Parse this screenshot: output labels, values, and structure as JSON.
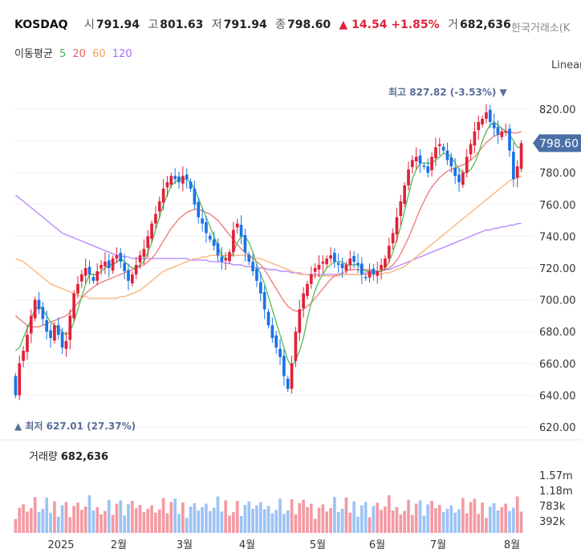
{
  "header": {
    "symbol": "KOSDAQ",
    "open_label": "시",
    "open": "791.94",
    "high_label": "고",
    "high": "801.63",
    "low_label": "저",
    "low": "791.94",
    "close_label": "종",
    "close": "798.60",
    "change": "▲ 14.54 +1.85%",
    "volume_label": "거",
    "volume": "682,636",
    "exchange": "한국거래소(K",
    "scale_mode": "Linear"
  },
  "moving_averages": {
    "label": "이동평균",
    "periods": [
      {
        "period": "5",
        "color": "#4caf50"
      },
      {
        "period": "20",
        "color": "#f06060"
      },
      {
        "period": "60",
        "color": "#f5a35c"
      },
      {
        "period": "120",
        "color": "#a66bff"
      }
    ]
  },
  "colors": {
    "up": "#e0223a",
    "down": "#1a73e8",
    "price_tag": "#4a6fa5",
    "vol_up": "#f49aa3",
    "vol_down": "#9cc3f5"
  },
  "chart_data": {
    "type": "candlestick",
    "y_axis": {
      "min": 620,
      "max": 820,
      "ticks": [
        "820.00",
        "800.00",
        "780.00",
        "760.00",
        "740.00",
        "720.00",
        "700.00",
        "680.00",
        "660.00",
        "640.00",
        "620.00"
      ]
    },
    "x_axis_labels": [
      "2025",
      "2월",
      "3월",
      "4월",
      "5월",
      "6월",
      "7월",
      "8월"
    ],
    "last_price_tag": "798.60",
    "max_annotation": "최고 827.82 (-3.53%) ▼",
    "min_annotation": "▲ 최저 627.01 (27.37%)",
    "closes": [
      640,
      660,
      668,
      678,
      690,
      700,
      694,
      688,
      680,
      676,
      684,
      678,
      670,
      674,
      690,
      704,
      710,
      716,
      720,
      716,
      712,
      718,
      722,
      724,
      720,
      726,
      728,
      724,
      718,
      712,
      716,
      722,
      728,
      732,
      740,
      748,
      754,
      762,
      770,
      774,
      778,
      776,
      774,
      778,
      776,
      770,
      760,
      752,
      748,
      742,
      738,
      734,
      728,
      724,
      726,
      730,
      744,
      748,
      740,
      730,
      724,
      718,
      712,
      704,
      694,
      684,
      676,
      670,
      664,
      652,
      644,
      660,
      680,
      694,
      704,
      710,
      716,
      720,
      722,
      724,
      726,
      728,
      724,
      722,
      720,
      722,
      726,
      724,
      722,
      716,
      714,
      718,
      716,
      718,
      722,
      726,
      734,
      742,
      752,
      762,
      772,
      782,
      788,
      790,
      786,
      784,
      780,
      790,
      796,
      798,
      794,
      788,
      784,
      778,
      774,
      780,
      790,
      798,
      806,
      812,
      814,
      818,
      812,
      808,
      804,
      806,
      806,
      794,
      776,
      784,
      798.6
    ],
    "ma5": [
      668,
      670,
      676,
      682,
      688,
      694,
      696,
      694,
      690,
      686,
      684,
      682,
      680,
      678,
      680,
      686,
      694,
      702,
      710,
      716,
      716,
      716,
      718,
      720,
      722,
      722,
      724,
      726,
      724,
      722,
      720,
      720,
      722,
      724,
      730,
      736,
      744,
      752,
      760,
      766,
      772,
      774,
      776,
      776,
      776,
      774,
      770,
      764,
      758,
      752,
      746,
      740,
      734,
      728,
      726,
      726,
      730,
      736,
      740,
      740,
      736,
      730,
      722,
      716,
      710,
      702,
      694,
      686,
      678,
      670,
      662,
      658,
      662,
      668,
      676,
      688,
      698,
      706,
      712,
      716,
      720,
      722,
      724,
      724,
      724,
      722,
      722,
      722,
      722,
      720,
      718,
      718,
      718,
      718,
      718,
      720,
      724,
      730,
      738,
      746,
      756,
      766,
      776,
      782,
      786,
      786,
      786,
      786,
      788,
      790,
      792,
      792,
      790,
      786,
      782,
      780,
      780,
      782,
      786,
      792,
      800,
      806,
      810,
      812,
      810,
      808,
      806,
      804,
      800,
      796,
      796
    ],
    "ma20": [
      690,
      688,
      686,
      684,
      683,
      683,
      683,
      684,
      685,
      686,
      687,
      688,
      689,
      690,
      692,
      695,
      698,
      701,
      704,
      706,
      708,
      710,
      711,
      712,
      713,
      714,
      715,
      716,
      717,
      718,
      719,
      720,
      721,
      722,
      724,
      726,
      729,
      733,
      737,
      741,
      745,
      748,
      751,
      753,
      755,
      756,
      757,
      757,
      756,
      755,
      754,
      752,
      750,
      747,
      744,
      741,
      738,
      735,
      732,
      730,
      728,
      726,
      724,
      722,
      719,
      715,
      711,
      707,
      703,
      699,
      696,
      694,
      693,
      693,
      694,
      696,
      698,
      701,
      704,
      707,
      710,
      713,
      715,
      716,
      717,
      718,
      719,
      719,
      719,
      719,
      719,
      719,
      718,
      718,
      718,
      719,
      720,
      722,
      725,
      729,
      734,
      739,
      745,
      751,
      757,
      762,
      767,
      771,
      774,
      777,
      779,
      781,
      782,
      783,
      784,
      785,
      786,
      788,
      790,
      793,
      796,
      799,
      801,
      803,
      804,
      805,
      806,
      806,
      805,
      805,
      806
    ],
    "ma60": [
      726,
      725,
      724,
      722,
      720,
      718,
      716,
      714,
      712,
      710,
      709,
      708,
      707,
      706,
      705,
      704,
      703,
      702,
      702,
      701,
      701,
      701,
      701,
      701,
      701,
      701,
      701,
      702,
      702,
      703,
      704,
      705,
      706,
      708,
      710,
      712,
      714,
      716,
      718,
      719,
      720,
      721,
      722,
      723,
      724,
      725,
      726,
      726,
      727,
      727,
      728,
      728,
      728,
      728,
      728,
      728,
      728,
      728,
      728,
      728,
      727,
      727,
      726,
      726,
      725,
      724,
      723,
      722,
      721,
      720,
      719,
      718,
      717,
      716,
      716,
      716,
      715,
      715,
      715,
      715,
      715,
      715,
      715,
      715,
      716,
      716,
      716,
      716,
      716,
      716,
      716,
      716,
      716,
      716,
      716,
      717,
      717,
      718,
      719,
      720,
      721,
      723,
      725,
      727,
      729,
      731,
      733,
      735,
      737,
      739,
      741,
      743,
      745,
      747,
      749,
      751,
      753,
      755,
      757,
      759,
      761,
      763,
      765,
      767,
      769,
      771,
      773,
      775,
      776,
      777,
      778
    ],
    "ma120": [
      766,
      764,
      762,
      760,
      758,
      756,
      754,
      752,
      750,
      748,
      746,
      744,
      742,
      741,
      740,
      739,
      738,
      737,
      736,
      735,
      734,
      733,
      732,
      731,
      730,
      729,
      728,
      728,
      727,
      727,
      726,
      726,
      726,
      726,
      726,
      726,
      726,
      726,
      726,
      726,
      726,
      726,
      726,
      726,
      726,
      725,
      725,
      725,
      725,
      725,
      724,
      724,
      724,
      724,
      723,
      723,
      722,
      722,
      722,
      721,
      721,
      721,
      720,
      720,
      720,
      719,
      719,
      719,
      718,
      718,
      718,
      717,
      717,
      717,
      716,
      716,
      716,
      716,
      716,
      716,
      716,
      716,
      716,
      716,
      716,
      716,
      716,
      716,
      716,
      716,
      717,
      717,
      717,
      718,
      718,
      719,
      719,
      720,
      721,
      722,
      723,
      724,
      725,
      726,
      727,
      728,
      729,
      730,
      731,
      732,
      733,
      734,
      735,
      736,
      737,
      738,
      739,
      740,
      741,
      742,
      743,
      744,
      744,
      745,
      745,
      746,
      746,
      747,
      747,
      748,
      748
    ],
    "volume_axis": {
      "max": 2000,
      "ticks": [
        "1.57m",
        "1.18m",
        "783k",
        "392k"
      ]
    },
    "volume_label": "거래량",
    "volume_value": "682,636"
  }
}
